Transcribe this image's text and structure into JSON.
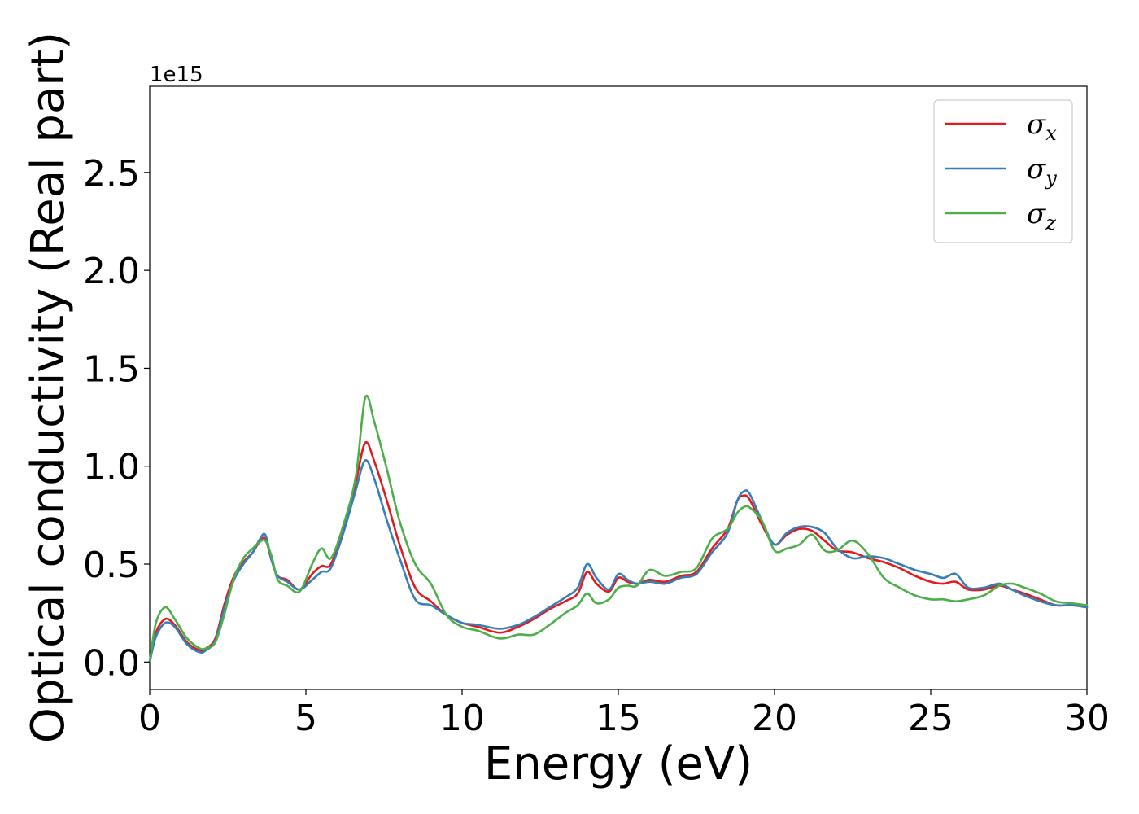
{
  "chart_data": {
    "type": "line",
    "title": "",
    "xlabel": "Energy (eV)",
    "ylabel": "Optical conductivity (Real part)",
    "y_offset_text": "1e15",
    "y_scale": 1000000000000000.0,
    "xlim": [
      0,
      30
    ],
    "ylim": [
      -0.14,
      2.94
    ],
    "xticks": [
      0,
      5,
      10,
      15,
      20,
      25,
      30
    ],
    "xtick_labels": [
      "0",
      "5",
      "10",
      "15",
      "20",
      "25",
      "30"
    ],
    "yticks": [
      0.0,
      0.5,
      1.0,
      1.5,
      2.0,
      2.5
    ],
    "ytick_labels": [
      "0.0",
      "0.5",
      "1.0",
      "1.5",
      "2.0",
      "2.5"
    ],
    "grid": false,
    "legend_position": "top-right",
    "series": [
      {
        "name": "σx",
        "symbol": "σ",
        "subscript": "x",
        "color": "#e41a1c",
        "x": [
          0,
          0.2,
          0.5,
          0.8,
          1.2,
          1.6,
          1.8,
          2.1,
          2.4,
          2.7,
          3.0,
          3.3,
          3.5,
          3.7,
          3.9,
          4.1,
          4.4,
          4.8,
          5.2,
          5.5,
          5.8,
          6.2,
          6.6,
          6.9,
          7.2,
          7.6,
          8.0,
          8.5,
          9.0,
          9.5,
          10.0,
          10.5,
          11.2,
          11.8,
          12.3,
          12.8,
          13.3,
          13.7,
          14.0,
          14.3,
          14.7,
          15.0,
          15.3,
          15.6,
          16.0,
          16.5,
          17.0,
          17.5,
          18.0,
          18.5,
          18.8,
          19.0,
          19.2,
          19.6,
          20.0,
          20.4,
          20.8,
          21.2,
          21.6,
          22.0,
          22.5,
          23.0,
          23.5,
          24.0,
          24.5,
          25.0,
          25.4,
          25.8,
          26.2,
          26.7,
          27.2,
          27.6,
          28.0,
          28.5,
          29.0,
          29.5,
          30.0
        ],
        "values": [
          0.0,
          0.15,
          0.22,
          0.19,
          0.1,
          0.06,
          0.07,
          0.12,
          0.3,
          0.44,
          0.51,
          0.56,
          0.61,
          0.63,
          0.52,
          0.44,
          0.42,
          0.37,
          0.45,
          0.49,
          0.5,
          0.68,
          0.92,
          1.12,
          1.02,
          0.82,
          0.6,
          0.38,
          0.31,
          0.24,
          0.2,
          0.18,
          0.15,
          0.18,
          0.22,
          0.27,
          0.31,
          0.35,
          0.46,
          0.4,
          0.36,
          0.43,
          0.41,
          0.4,
          0.42,
          0.41,
          0.44,
          0.46,
          0.58,
          0.68,
          0.82,
          0.85,
          0.83,
          0.7,
          0.6,
          0.65,
          0.68,
          0.67,
          0.62,
          0.57,
          0.56,
          0.53,
          0.51,
          0.48,
          0.44,
          0.41,
          0.4,
          0.41,
          0.37,
          0.37,
          0.39,
          0.37,
          0.35,
          0.32,
          0.29,
          0.29,
          0.28
        ]
      },
      {
        "name": "σy",
        "symbol": "σ",
        "subscript": "y",
        "color": "#377eb8",
        "x": [
          0,
          0.2,
          0.5,
          0.8,
          1.2,
          1.6,
          1.8,
          2.1,
          2.4,
          2.7,
          3.0,
          3.3,
          3.5,
          3.7,
          3.9,
          4.1,
          4.4,
          4.8,
          5.2,
          5.5,
          5.8,
          6.2,
          6.6,
          6.9,
          7.2,
          7.6,
          8.0,
          8.5,
          9.0,
          9.5,
          10.0,
          10.5,
          11.2,
          11.8,
          12.3,
          12.8,
          13.3,
          13.7,
          14.0,
          14.3,
          14.7,
          15.0,
          15.3,
          15.6,
          16.0,
          16.5,
          17.0,
          17.5,
          18.0,
          18.5,
          18.8,
          19.0,
          19.2,
          19.6,
          20.0,
          20.4,
          20.8,
          21.2,
          21.6,
          22.0,
          22.5,
          23.0,
          23.5,
          24.0,
          24.5,
          25.0,
          25.4,
          25.8,
          26.2,
          26.7,
          27.2,
          27.6,
          28.0,
          28.5,
          29.0,
          29.5,
          30.0
        ],
        "values": [
          0.0,
          0.13,
          0.2,
          0.18,
          0.09,
          0.05,
          0.06,
          0.11,
          0.28,
          0.42,
          0.5,
          0.56,
          0.62,
          0.65,
          0.52,
          0.44,
          0.41,
          0.37,
          0.42,
          0.46,
          0.48,
          0.66,
          0.88,
          1.03,
          0.93,
          0.72,
          0.53,
          0.32,
          0.29,
          0.24,
          0.2,
          0.19,
          0.17,
          0.19,
          0.23,
          0.28,
          0.33,
          0.38,
          0.5,
          0.43,
          0.37,
          0.45,
          0.42,
          0.4,
          0.41,
          0.4,
          0.43,
          0.45,
          0.56,
          0.66,
          0.82,
          0.87,
          0.86,
          0.72,
          0.6,
          0.66,
          0.69,
          0.69,
          0.66,
          0.58,
          0.53,
          0.54,
          0.53,
          0.5,
          0.47,
          0.45,
          0.43,
          0.45,
          0.38,
          0.38,
          0.4,
          0.37,
          0.34,
          0.31,
          0.29,
          0.29,
          0.28
        ]
      },
      {
        "name": "σz",
        "symbol": "σ",
        "subscript": "z",
        "color": "#4daf4a",
        "x": [
          0,
          0.2,
          0.5,
          0.8,
          1.2,
          1.6,
          1.8,
          2.1,
          2.4,
          2.7,
          3.0,
          3.3,
          3.5,
          3.7,
          3.9,
          4.1,
          4.4,
          4.8,
          5.2,
          5.5,
          5.8,
          6.2,
          6.6,
          6.9,
          7.2,
          7.6,
          8.0,
          8.5,
          9.0,
          9.5,
          10.0,
          10.5,
          11.2,
          11.8,
          12.3,
          12.8,
          13.3,
          13.7,
          14.0,
          14.3,
          14.7,
          15.0,
          15.3,
          15.6,
          16.0,
          16.5,
          17.0,
          17.5,
          18.0,
          18.5,
          18.8,
          19.0,
          19.2,
          19.6,
          20.0,
          20.4,
          20.8,
          21.2,
          21.6,
          22.0,
          22.5,
          23.0,
          23.5,
          24.0,
          24.5,
          25.0,
          25.4,
          25.8,
          26.2,
          26.7,
          27.2,
          27.6,
          28.0,
          28.5,
          29.0,
          29.5,
          30.0
        ],
        "values": [
          0.0,
          0.2,
          0.28,
          0.22,
          0.12,
          0.07,
          0.07,
          0.1,
          0.25,
          0.43,
          0.53,
          0.58,
          0.61,
          0.62,
          0.54,
          0.42,
          0.39,
          0.36,
          0.5,
          0.58,
          0.53,
          0.7,
          0.95,
          1.35,
          1.22,
          0.98,
          0.72,
          0.5,
          0.4,
          0.24,
          0.18,
          0.16,
          0.12,
          0.14,
          0.14,
          0.19,
          0.25,
          0.29,
          0.35,
          0.3,
          0.32,
          0.38,
          0.39,
          0.39,
          0.47,
          0.44,
          0.46,
          0.48,
          0.63,
          0.68,
          0.76,
          0.79,
          0.79,
          0.72,
          0.57,
          0.58,
          0.6,
          0.65,
          0.57,
          0.57,
          0.62,
          0.55,
          0.43,
          0.38,
          0.34,
          0.32,
          0.32,
          0.31,
          0.32,
          0.34,
          0.39,
          0.4,
          0.38,
          0.35,
          0.31,
          0.3,
          0.29
        ]
      }
    ]
  }
}
